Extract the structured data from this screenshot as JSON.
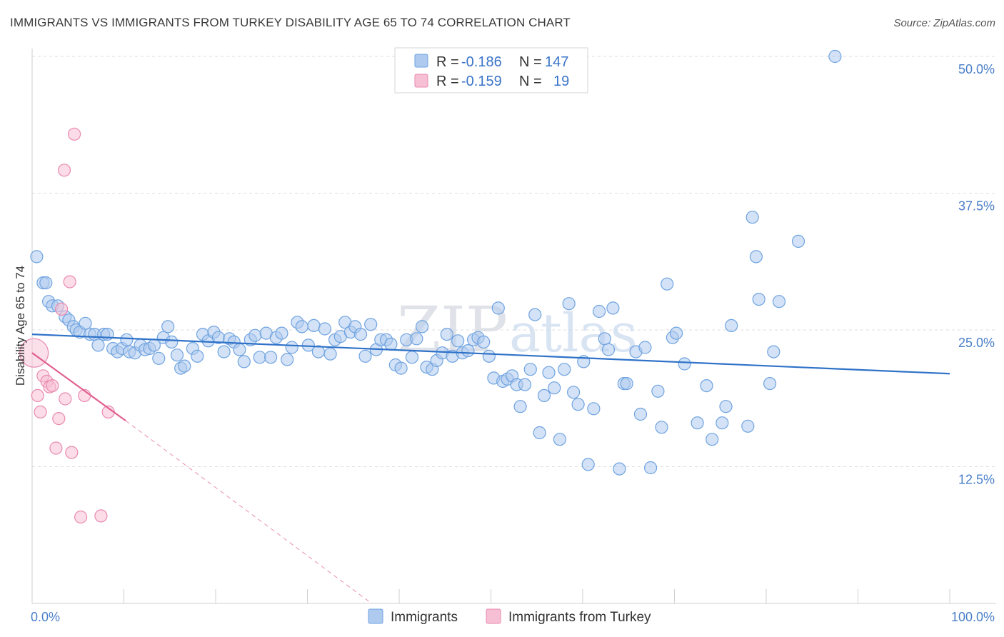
{
  "title": "IMMIGRANTS VS IMMIGRANTS FROM TURKEY DISABILITY AGE 65 TO 74 CORRELATION CHART",
  "source": "Source: ZipAtlas.com",
  "watermark": {
    "zip": "ZIP",
    "atlas": "atlas"
  },
  "colors": {
    "blue": "#6fa3e0",
    "blue_fill": "#aecbef",
    "blue_line": "#2f72c8",
    "pink": "#e98ab0",
    "pink_fill": "#f7bfd3",
    "pink_line": "#e0608f",
    "axis_text": "#4a7fc8"
  },
  "legend": {
    "r_label": "R = ",
    "n_label": "N = ",
    "rows": [
      {
        "r": "-0.186",
        "n": "147"
      },
      {
        "r": "-0.159",
        "n": "19"
      }
    ]
  },
  "bottom_legend": [
    "Immigrants",
    "Immigrants from Turkey"
  ],
  "chart_data": {
    "type": "scatter",
    "title": "IMMIGRANTS VS IMMIGRANTS FROM TURKEY DISABILITY AGE 65 TO 74 CORRELATION CHART",
    "xlabel": "",
    "ylabel": "Disability Age 65 to 74",
    "xlim": [
      0,
      100
    ],
    "ylim": [
      0,
      50
    ],
    "x_tick_labels": [
      "0.0%",
      "100.0%"
    ],
    "y_ticks": [
      12.5,
      25.0,
      37.5,
      50.0
    ],
    "y_tick_labels": [
      "12.5%",
      "25.0%",
      "37.5%",
      "50.0%"
    ],
    "grid": true,
    "legend_position": "top-center",
    "series": [
      {
        "name": "Immigrants",
        "r": -0.186,
        "n": 147,
        "trend": {
          "x": [
            0,
            100
          ],
          "y": [
            24.6,
            21.0
          ]
        },
        "points": [
          [
            0.5,
            31.7
          ],
          [
            1.2,
            29.3
          ],
          [
            1.5,
            29.3
          ],
          [
            1.8,
            27.6
          ],
          [
            2.2,
            27.2
          ],
          [
            2.8,
            27.2
          ],
          [
            3.6,
            26.2
          ],
          [
            4.0,
            25.9
          ],
          [
            4.5,
            25.3
          ],
          [
            4.8,
            25.0
          ],
          [
            5.2,
            24.8
          ],
          [
            5.8,
            25.6
          ],
          [
            6.3,
            24.6
          ],
          [
            6.8,
            24.6
          ],
          [
            7.2,
            23.6
          ],
          [
            7.8,
            24.6
          ],
          [
            8.2,
            24.6
          ],
          [
            8.8,
            23.3
          ],
          [
            9.3,
            23.0
          ],
          [
            9.8,
            23.3
          ],
          [
            10.3,
            24.1
          ],
          [
            10.6,
            23.0
          ],
          [
            11.2,
            22.9
          ],
          [
            11.8,
            23.6
          ],
          [
            12.3,
            23.2
          ],
          [
            12.8,
            23.3
          ],
          [
            13.3,
            23.6
          ],
          [
            13.8,
            22.4
          ],
          [
            14.3,
            24.3
          ],
          [
            14.8,
            25.3
          ],
          [
            15.2,
            23.9
          ],
          [
            15.8,
            22.7
          ],
          [
            16.2,
            21.5
          ],
          [
            16.6,
            21.7
          ],
          [
            17.5,
            23.3
          ],
          [
            18.0,
            22.6
          ],
          [
            18.6,
            24.6
          ],
          [
            19.2,
            24.0
          ],
          [
            19.8,
            24.8
          ],
          [
            20.3,
            24.3
          ],
          [
            20.9,
            23.0
          ],
          [
            21.5,
            24.2
          ],
          [
            22.0,
            23.9
          ],
          [
            22.6,
            23.2
          ],
          [
            23.1,
            22.1
          ],
          [
            23.8,
            24.1
          ],
          [
            24.3,
            24.5
          ],
          [
            24.8,
            22.5
          ],
          [
            25.5,
            24.7
          ],
          [
            26.0,
            22.5
          ],
          [
            26.6,
            24.3
          ],
          [
            27.2,
            24.7
          ],
          [
            27.8,
            22.3
          ],
          [
            28.3,
            23.4
          ],
          [
            28.9,
            25.7
          ],
          [
            29.4,
            25.3
          ],
          [
            30.1,
            23.6
          ],
          [
            30.7,
            25.4
          ],
          [
            31.2,
            23.0
          ],
          [
            31.9,
            25.1
          ],
          [
            32.5,
            22.8
          ],
          [
            33.0,
            24.1
          ],
          [
            33.6,
            24.4
          ],
          [
            34.1,
            25.7
          ],
          [
            34.7,
            24.8
          ],
          [
            35.2,
            25.3
          ],
          [
            35.8,
            24.6
          ],
          [
            36.3,
            22.6
          ],
          [
            36.9,
            25.5
          ],
          [
            37.5,
            23.2
          ],
          [
            38.0,
            24.1
          ],
          [
            38.6,
            24.1
          ],
          [
            39.1,
            23.7
          ],
          [
            39.6,
            21.8
          ],
          [
            40.2,
            21.5
          ],
          [
            40.8,
            24.1
          ],
          [
            41.4,
            22.5
          ],
          [
            41.9,
            24.2
          ],
          [
            42.5,
            25.3
          ],
          [
            43.0,
            21.6
          ],
          [
            43.6,
            21.4
          ],
          [
            44.1,
            22.2
          ],
          [
            44.7,
            22.9
          ],
          [
            45.2,
            24.6
          ],
          [
            45.8,
            22.6
          ],
          [
            46.4,
            24.0
          ],
          [
            46.9,
            22.9
          ],
          [
            47.5,
            23.1
          ],
          [
            48.1,
            24.1
          ],
          [
            48.6,
            24.3
          ],
          [
            49.2,
            23.9
          ],
          [
            49.8,
            22.6
          ],
          [
            50.3,
            20.6
          ],
          [
            50.8,
            27.0
          ],
          [
            51.3,
            20.3
          ],
          [
            51.8,
            20.5
          ],
          [
            52.3,
            20.8
          ],
          [
            52.8,
            20.0
          ],
          [
            53.2,
            18.0
          ],
          [
            53.7,
            20.0
          ],
          [
            54.3,
            21.4
          ],
          [
            54.8,
            26.4
          ],
          [
            55.3,
            15.6
          ],
          [
            55.8,
            19.0
          ],
          [
            56.3,
            21.1
          ],
          [
            56.9,
            19.7
          ],
          [
            57.5,
            15.0
          ],
          [
            58.0,
            21.4
          ],
          [
            58.5,
            27.4
          ],
          [
            59.0,
            19.3
          ],
          [
            59.5,
            18.2
          ],
          [
            60.1,
            22.1
          ],
          [
            60.6,
            12.7
          ],
          [
            61.2,
            17.8
          ],
          [
            61.8,
            26.7
          ],
          [
            62.4,
            24.2
          ],
          [
            62.8,
            23.2
          ],
          [
            63.3,
            27.0
          ],
          [
            64.0,
            12.3
          ],
          [
            64.5,
            20.1
          ],
          [
            64.8,
            20.1
          ],
          [
            65.8,
            23.0
          ],
          [
            66.3,
            17.3
          ],
          [
            66.8,
            23.4
          ],
          [
            67.4,
            12.4
          ],
          [
            68.2,
            19.4
          ],
          [
            68.6,
            16.1
          ],
          [
            69.2,
            29.2
          ],
          [
            69.8,
            24.3
          ],
          [
            70.2,
            24.7
          ],
          [
            71.1,
            21.9
          ],
          [
            72.5,
            16.5
          ],
          [
            73.5,
            19.9
          ],
          [
            74.1,
            15.0
          ],
          [
            75.2,
            16.5
          ],
          [
            75.6,
            18.0
          ],
          [
            76.2,
            25.4
          ],
          [
            78.0,
            16.2
          ],
          [
            78.5,
            35.3
          ],
          [
            78.9,
            31.7
          ],
          [
            79.2,
            27.8
          ],
          [
            80.4,
            20.1
          ],
          [
            80.8,
            23.0
          ],
          [
            81.4,
            27.6
          ],
          [
            83.5,
            33.1
          ],
          [
            87.5,
            50.0
          ]
        ]
      },
      {
        "name": "Immigrants from Turkey",
        "r": -0.159,
        "n": 19,
        "trend": {
          "x": [
            0,
            10.2
          ],
          "y": [
            22.9,
            16.7
          ]
        },
        "trend_dashed": {
          "x": [
            10.2,
            37.0
          ],
          "y": [
            16.7,
            0.0
          ]
        },
        "points": [
          [
            0.2,
            22.9
          ],
          [
            0.6,
            19.0
          ],
          [
            0.9,
            17.5
          ],
          [
            1.2,
            20.8
          ],
          [
            1.6,
            20.3
          ],
          [
            1.9,
            19.8
          ],
          [
            2.2,
            19.9
          ],
          [
            2.6,
            14.2
          ],
          [
            2.9,
            16.9
          ],
          [
            3.2,
            26.9
          ],
          [
            3.5,
            39.6
          ],
          [
            3.6,
            18.7
          ],
          [
            4.1,
            29.4
          ],
          [
            4.3,
            13.8
          ],
          [
            4.6,
            42.9
          ],
          [
            5.3,
            7.9
          ],
          [
            5.7,
            19.0
          ],
          [
            7.5,
            8.0
          ],
          [
            8.3,
            17.5
          ]
        ]
      }
    ]
  }
}
